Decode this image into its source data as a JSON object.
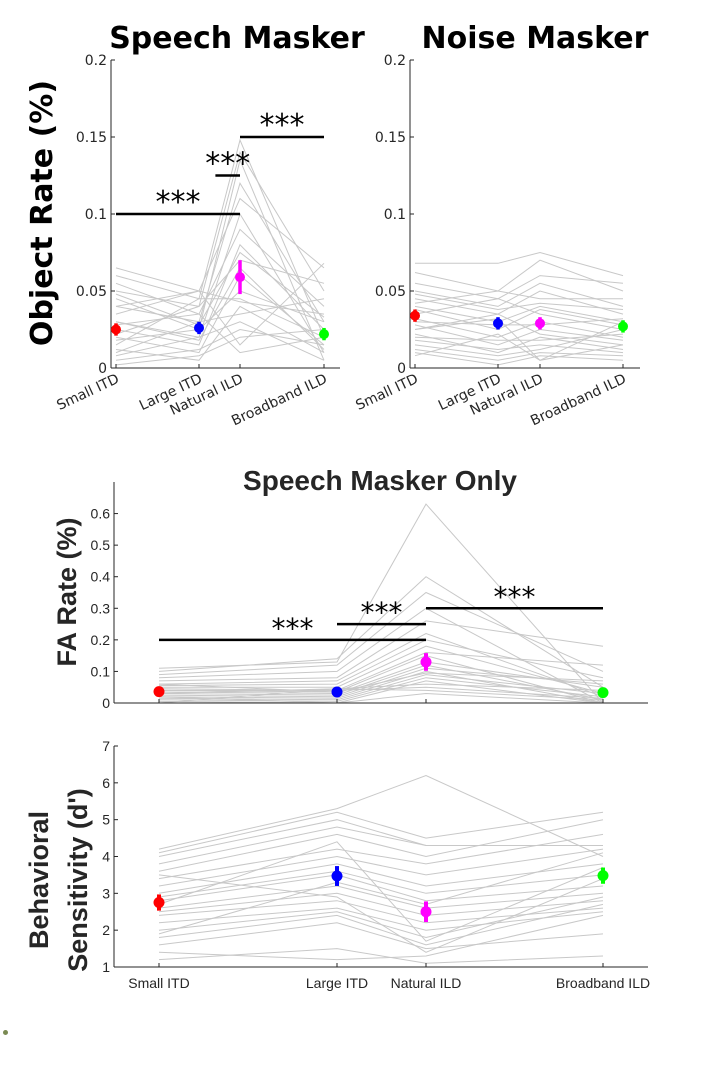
{
  "chart_data": [
    {
      "type": "scatter",
      "title": "Speech Masker",
      "ylabel": "Object Rate (%)",
      "categories": [
        "Small ITD",
        "Large ITD",
        "Natural ILD",
        "Broadband ILD"
      ],
      "ylim": [
        0,
        0.2
      ],
      "yticks": [
        "0",
        "0.05",
        "0.1",
        "0.15",
        "0.2"
      ],
      "colors": [
        "#ff0000",
        "#0000ff",
        "#ff00ff",
        "#00ff00"
      ],
      "means": [
        0.025,
        0.026,
        0.059,
        0.022
      ],
      "errors": [
        0.004,
        0.004,
        0.011,
        0.004
      ],
      "significance": [
        {
          "from": 0,
          "to": 2,
          "y": 0.1,
          "label": "***"
        },
        {
          "from": 1.4,
          "to": 2,
          "y": 0.125,
          "label": "***"
        },
        {
          "from": 2,
          "to": 3,
          "y": 0.15,
          "label": "***"
        }
      ],
      "subjects": [
        [
          0.065,
          0.05,
          0.043,
          0.035
        ],
        [
          0.06,
          0.045,
          0.148,
          0.02
        ],
        [
          0.05,
          0.04,
          0.14,
          0.05
        ],
        [
          0.045,
          0.025,
          0.135,
          0.005
        ],
        [
          0.04,
          0.03,
          0.12,
          0.03
        ],
        [
          0.035,
          0.05,
          0.11,
          0.065
        ],
        [
          0.03,
          0.02,
          0.1,
          0.01
        ],
        [
          0.028,
          0.035,
          0.09,
          0.04
        ],
        [
          0.025,
          0.015,
          0.08,
          0.025
        ],
        [
          0.022,
          0.04,
          0.07,
          0.055
        ],
        [
          0.02,
          0.01,
          0.06,
          0.015
        ],
        [
          0.018,
          0.025,
          0.05,
          0.03
        ],
        [
          0.015,
          0.045,
          0.045,
          0.02
        ],
        [
          0.012,
          0.005,
          0.04,
          0.01
        ],
        [
          0.01,
          0.03,
          0.035,
          0.045
        ],
        [
          0.008,
          0.02,
          0.03,
          0.005
        ],
        [
          0.005,
          0.012,
          0.025,
          0.015
        ],
        [
          0.002,
          0.008,
          0.02,
          0.025
        ],
        [
          0.04,
          0.05,
          0.015,
          0.068
        ],
        [
          0.055,
          0.035,
          0.01,
          0.02
        ],
        [
          0.03,
          0.018,
          0.065,
          0.012
        ],
        [
          0.048,
          0.028,
          0.075,
          0.033
        ]
      ]
    },
    {
      "type": "scatter",
      "title": "Noise Masker",
      "ylabel": "",
      "categories": [
        "Small ITD",
        "Large ITD",
        "Natural ILD",
        "Broadband ILD"
      ],
      "ylim": [
        0,
        0.2
      ],
      "yticks": [
        "0",
        "0.05",
        "0.1",
        "0.15",
        "0.2"
      ],
      "colors": [
        "#ff0000",
        "#0000ff",
        "#ff00ff",
        "#00ff00"
      ],
      "means": [
        0.034,
        0.029,
        0.029,
        0.027
      ],
      "errors": [
        0.004,
        0.004,
        0.004,
        0.004
      ],
      "significance": [],
      "subjects": [
        [
          0.068,
          0.068,
          0.075,
          0.06
        ],
        [
          0.062,
          0.05,
          0.07,
          0.05
        ],
        [
          0.055,
          0.045,
          0.06,
          0.055
        ],
        [
          0.05,
          0.04,
          0.055,
          0.04
        ],
        [
          0.045,
          0.035,
          0.05,
          0.035
        ],
        [
          0.042,
          0.05,
          0.045,
          0.045
        ],
        [
          0.04,
          0.03,
          0.04,
          0.03
        ],
        [
          0.038,
          0.025,
          0.038,
          0.028
        ],
        [
          0.035,
          0.045,
          0.035,
          0.025
        ],
        [
          0.032,
          0.02,
          0.03,
          0.02
        ],
        [
          0.03,
          0.028,
          0.028,
          0.032
        ],
        [
          0.028,
          0.015,
          0.025,
          0.018
        ],
        [
          0.025,
          0.035,
          0.022,
          0.015
        ],
        [
          0.022,
          0.01,
          0.02,
          0.012
        ],
        [
          0.02,
          0.018,
          0.018,
          0.022
        ],
        [
          0.018,
          0.012,
          0.015,
          0.01
        ],
        [
          0.015,
          0.008,
          0.012,
          0.025
        ],
        [
          0.012,
          0.005,
          0.01,
          0.008
        ],
        [
          0.01,
          0.002,
          0.008,
          0.005
        ],
        [
          0.008,
          0.022,
          0.005,
          0.015
        ],
        [
          0.048,
          0.038,
          0.042,
          0.038
        ],
        [
          0.025,
          0.032,
          0.005,
          0.03
        ]
      ]
    },
    {
      "type": "scatter",
      "title": "Speech Masker Only",
      "ylabel": "FA Rate (%)",
      "categories": [
        "Small ITD",
        "Large ITD",
        "Natural ILD",
        "Broadband ILD"
      ],
      "ylim": [
        0,
        0.7
      ],
      "yticks": [
        "0",
        "0.1",
        "0.2",
        "0.3",
        "0.4",
        "0.5",
        "0.6"
      ],
      "colors": [
        "#ff0000",
        "#0000ff",
        "#ff00ff",
        "#00ff00"
      ],
      "means": [
        0.036,
        0.035,
        0.13,
        0.033
      ],
      "errors": [
        0.006,
        0.008,
        0.028,
        0.008
      ],
      "significance": [
        {
          "from": 0,
          "to": 2,
          "y": 0.2,
          "label": "***"
        },
        {
          "from": 1,
          "to": 2,
          "y": 0.25,
          "label": "***"
        },
        {
          "from": 2,
          "to": 3,
          "y": 0.3,
          "label": "***"
        }
      ],
      "subjects": [
        [
          0.11,
          0.13,
          0.63,
          0.0
        ],
        [
          0.1,
          0.14,
          0.4,
          0.05
        ],
        [
          0.09,
          0.12,
          0.35,
          0.1
        ],
        [
          0.08,
          0.1,
          0.3,
          0.0
        ],
        [
          0.07,
          0.08,
          0.26,
          0.18
        ],
        [
          0.06,
          0.07,
          0.22,
          0.02
        ],
        [
          0.055,
          0.06,
          0.2,
          0.08
        ],
        [
          0.05,
          0.05,
          0.18,
          0.03
        ],
        [
          0.045,
          0.04,
          0.16,
          0.12
        ],
        [
          0.04,
          0.035,
          0.15,
          0.0
        ],
        [
          0.035,
          0.03,
          0.13,
          0.05
        ],
        [
          0.03,
          0.025,
          0.12,
          0.01
        ],
        [
          0.025,
          0.02,
          0.11,
          0.06
        ],
        [
          0.02,
          0.015,
          0.1,
          0.0
        ],
        [
          0.015,
          0.01,
          0.09,
          0.03
        ],
        [
          0.01,
          0.005,
          0.08,
          0.02
        ],
        [
          0.005,
          0.0,
          0.07,
          0.0
        ],
        [
          0.0,
          0.045,
          0.06,
          0.04
        ],
        [
          0.04,
          0.04,
          0.05,
          0.015
        ],
        [
          0.03,
          0.045,
          0.04,
          0.01
        ],
        [
          0.02,
          0.0,
          0.03,
          0.0
        ],
        [
          0.06,
          0.035,
          0.095,
          0.07
        ]
      ]
    },
    {
      "type": "scatter",
      "title": "",
      "ylabel_lines": [
        "Behavioral",
        "Sensitivity (d')"
      ],
      "categories": [
        "Small ITD",
        "Large ITD",
        "Natural ILD",
        "Broadband ILD"
      ],
      "ylim": [
        1,
        7
      ],
      "yticks": [
        "1",
        "2",
        "3",
        "4",
        "5",
        "6",
        "7"
      ],
      "colors": [
        "#ff0000",
        "#0000ff",
        "#ff00ff",
        "#00ff00"
      ],
      "means": [
        2.75,
        3.47,
        2.5,
        3.48
      ],
      "errors": [
        0.22,
        0.27,
        0.28,
        0.22
      ],
      "significance": [],
      "subjects": [
        [
          4.2,
          5.3,
          6.2,
          4.0
        ],
        [
          4.1,
          5.2,
          4.5,
          5.2
        ],
        [
          4.0,
          5.0,
          4.3,
          4.3
        ],
        [
          3.8,
          4.8,
          4.3,
          4.3
        ],
        [
          3.6,
          4.6,
          4.0,
          5.0
        ],
        [
          3.4,
          4.2,
          3.8,
          4.6
        ],
        [
          3.2,
          4.0,
          3.5,
          4.2
        ],
        [
          3.0,
          3.8,
          3.2,
          3.8
        ],
        [
          2.9,
          3.6,
          3.0,
          3.5
        ],
        [
          2.8,
          3.5,
          2.8,
          3.2
        ],
        [
          2.6,
          3.2,
          2.6,
          3.0
        ],
        [
          2.5,
          3.0,
          2.4,
          2.8
        ],
        [
          2.4,
          2.8,
          2.2,
          2.6
        ],
        [
          2.2,
          2.6,
          2.0,
          2.5
        ],
        [
          2.0,
          2.5,
          1.8,
          2.9
        ],
        [
          1.8,
          2.4,
          1.6,
          2.7
        ],
        [
          1.6,
          2.2,
          1.5,
          1.9
        ],
        [
          1.4,
          1.2,
          1.3,
          2.4
        ],
        [
          1.2,
          1.5,
          1.1,
          1.3
        ],
        [
          3.5,
          2.9,
          1.4,
          3.4
        ],
        [
          1.9,
          3.3,
          2.7,
          4.1
        ],
        [
          2.7,
          4.4,
          1.7,
          3.7
        ]
      ]
    }
  ]
}
